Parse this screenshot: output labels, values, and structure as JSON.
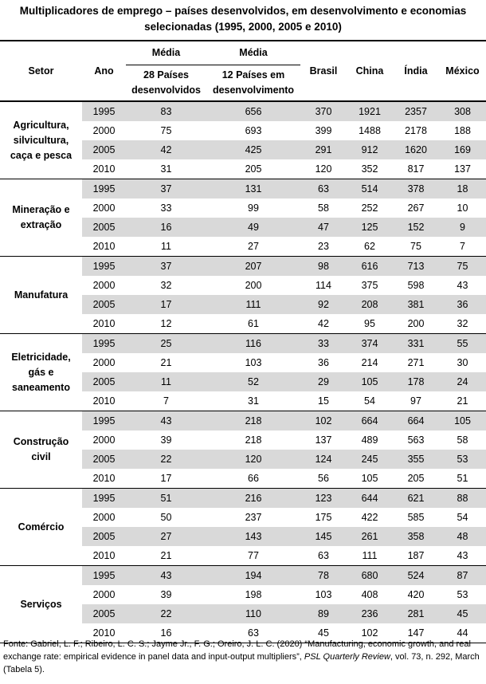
{
  "title_line1": "Multiplicadores de emprego – países desenvolvidos, em desenvolvimento e economias",
  "title_line2": "selecionadas (1995, 2000, 2005 e 2010)",
  "headers": {
    "setor": "Setor",
    "ano": "Ano",
    "media1": "Média",
    "media2": "Média",
    "dev_line1": "28 Países",
    "dev_line2": "desenvolvidos",
    "emerg_line1": "12 Países em",
    "emerg_line2": "desenvolvimento",
    "brasil": "Brasil",
    "china": "China",
    "india": "Índia",
    "mexico": "México"
  },
  "sectors": [
    {
      "name_lines": [
        "Agricultura,",
        "silvicultura,",
        "caça e pesca"
      ],
      "rows": [
        [
          "1995",
          "83",
          "656",
          "370",
          "1921",
          "2357",
          "308"
        ],
        [
          "2000",
          "75",
          "693",
          "399",
          "1488",
          "2178",
          "188"
        ],
        [
          "2005",
          "42",
          "425",
          "291",
          "912",
          "1620",
          "169"
        ],
        [
          "2010",
          "31",
          "205",
          "120",
          "352",
          "817",
          "137"
        ]
      ]
    },
    {
      "name_lines": [
        "Mineração e",
        "extração"
      ],
      "rows": [
        [
          "1995",
          "37",
          "131",
          "63",
          "514",
          "378",
          "18"
        ],
        [
          "2000",
          "33",
          "99",
          "58",
          "252",
          "267",
          "10"
        ],
        [
          "2005",
          "16",
          "49",
          "47",
          "125",
          "152",
          "9"
        ],
        [
          "2010",
          "11",
          "27",
          "23",
          "62",
          "75",
          "7"
        ]
      ]
    },
    {
      "name_lines": [
        "Manufatura"
      ],
      "rows": [
        [
          "1995",
          "37",
          "207",
          "98",
          "616",
          "713",
          "75"
        ],
        [
          "2000",
          "32",
          "200",
          "114",
          "375",
          "598",
          "43"
        ],
        [
          "2005",
          "17",
          "111",
          "92",
          "208",
          "381",
          "36"
        ],
        [
          "2010",
          "12",
          "61",
          "42",
          "95",
          "200",
          "32"
        ]
      ]
    },
    {
      "name_lines": [
        "Eletricidade,",
        "gás e",
        "saneamento"
      ],
      "rows": [
        [
          "1995",
          "25",
          "116",
          "33",
          "374",
          "331",
          "55"
        ],
        [
          "2000",
          "21",
          "103",
          "36",
          "214",
          "271",
          "30"
        ],
        [
          "2005",
          "11",
          "52",
          "29",
          "105",
          "178",
          "24"
        ],
        [
          "2010",
          "7",
          "31",
          "15",
          "54",
          "97",
          "21"
        ]
      ]
    },
    {
      "name_lines": [
        "Construção",
        "civil"
      ],
      "rows": [
        [
          "1995",
          "43",
          "218",
          "102",
          "664",
          "664",
          "105"
        ],
        [
          "2000",
          "39",
          "218",
          "137",
          "489",
          "563",
          "58"
        ],
        [
          "2005",
          "22",
          "120",
          "124",
          "245",
          "355",
          "53"
        ],
        [
          "2010",
          "17",
          "66",
          "56",
          "105",
          "205",
          "51"
        ]
      ]
    },
    {
      "name_lines": [
        "Comércio"
      ],
      "rows": [
        [
          "1995",
          "51",
          "216",
          "123",
          "644",
          "621",
          "88"
        ],
        [
          "2000",
          "50",
          "237",
          "175",
          "422",
          "585",
          "54"
        ],
        [
          "2005",
          "27",
          "143",
          "145",
          "261",
          "358",
          "48"
        ],
        [
          "2010",
          "21",
          "77",
          "63",
          "111",
          "187",
          "43"
        ]
      ]
    },
    {
      "name_lines": [
        "Serviços"
      ],
      "rows": [
        [
          "1995",
          "43",
          "194",
          "78",
          "680",
          "524",
          "87"
        ],
        [
          "2000",
          "39",
          "198",
          "103",
          "408",
          "420",
          "53"
        ],
        [
          "2005",
          "22",
          "110",
          "89",
          "236",
          "281",
          "45"
        ],
        [
          "2010",
          "16",
          "63",
          "45",
          "102",
          "147",
          "44"
        ]
      ]
    }
  ],
  "source": {
    "part1": "Fonte: Gabriel, L. F.; Ribeiro, L. C. S.; Jayme Jr., F. G.; Oreiro, J. L. C. (2020) “Manufacturing, economic growth, and real exchange rate: empirical evidence in panel data and input-output multipliers”, ",
    "journal": "PSL Quarterly Review",
    "part2": ", vol. 73, n. 292, March (Tabela 5)."
  }
}
